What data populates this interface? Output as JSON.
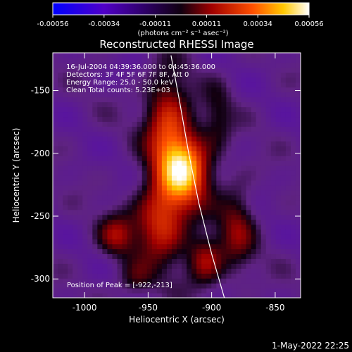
{
  "chart_data": {
    "type": "heatmap",
    "title": "Reconstructed RHESSI Image",
    "xlabel": "Heliocentric X (arcsec)",
    "ylabel": "Heliocentric Y (arcsec)",
    "xlim": [
      -1025,
      -830
    ],
    "ylim": [
      -315,
      -120
    ],
    "x_ticks": [
      -1000,
      -950,
      -900,
      -850
    ],
    "y_ticks": [
      -150,
      -200,
      -250,
      -300
    ],
    "colorbar": {
      "ticks": [
        "-0.00056",
        "-0.00034",
        "-0.00011",
        "0.00011",
        "0.00034",
        "0.00056"
      ],
      "unit_label": "(photons cm⁻² s⁻¹ asec⁻²)",
      "range": [
        -0.00056,
        0.00056
      ]
    },
    "annotations": [
      "16-Jul-2004 04:39:36.000 to 04:45:36.000",
      "Detectors: 3F 4F 5F 6F 7F 8F, Att 0",
      "Energy Range: 25.0 - 50.0 keV",
      "Clean     Total counts: 5.23E+03"
    ],
    "peak_label": "Position of Peak = [-922,-213]",
    "peak": {
      "x": -922,
      "y": -213
    },
    "limb_curve": [
      {
        "x": -932,
        "y": -122
      },
      {
        "x": -925,
        "y": -160
      },
      {
        "x": -918,
        "y": -200
      },
      {
        "x": -910,
        "y": -240
      },
      {
        "x": -900,
        "y": -280
      },
      {
        "x": -890,
        "y": -315
      }
    ],
    "sources": [
      {
        "x": -922,
        "y": -213,
        "amp": 0.00056,
        "sx": 14,
        "sy": 20
      },
      {
        "x": -935,
        "y": -175,
        "amp": 0.00032,
        "sx": 12,
        "sy": 26
      },
      {
        "x": -940,
        "y": -255,
        "amp": 0.00034,
        "sx": 14,
        "sy": 22
      },
      {
        "x": -905,
        "y": -285,
        "amp": 0.00026,
        "sx": 10,
        "sy": 14
      },
      {
        "x": -880,
        "y": -260,
        "amp": 0.0002,
        "sx": 10,
        "sy": 24
      },
      {
        "x": -975,
        "y": -265,
        "amp": 0.00022,
        "sx": 10,
        "sy": 12
      },
      {
        "x": -960,
        "y": -300,
        "amp": 0.00014,
        "sx": 10,
        "sy": 10
      },
      {
        "x": -895,
        "y": -170,
        "amp": 0.00012,
        "sx": 8,
        "sy": 18
      }
    ]
  },
  "timestamp": "1-May-2022 22:25",
  "colors": {
    "limb": "#ffffff",
    "background": "#000000"
  }
}
